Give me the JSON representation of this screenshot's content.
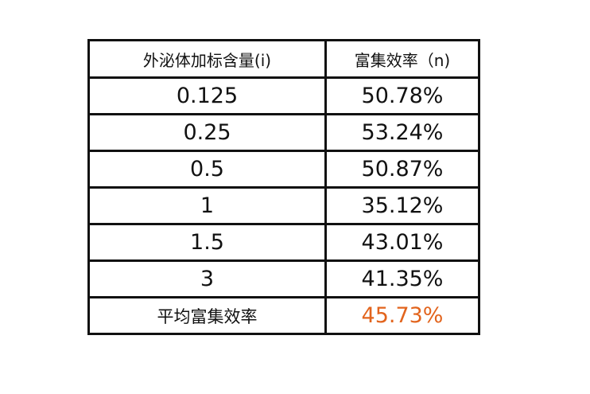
{
  "table": {
    "header": [
      "外泌体加标含量(i)",
      "富集效率（n)"
    ],
    "rows": [
      [
        "0.125",
        "50.78%"
      ],
      [
        "0.25",
        "53.24%"
      ],
      [
        "0.5",
        "50.87%"
      ],
      [
        "1",
        "35.12%"
      ],
      [
        "1.5",
        "43.01%"
      ],
      [
        "3",
        "41.35%"
      ],
      [
        "平均富集效率",
        "45.73%"
      ]
    ]
  }
}
